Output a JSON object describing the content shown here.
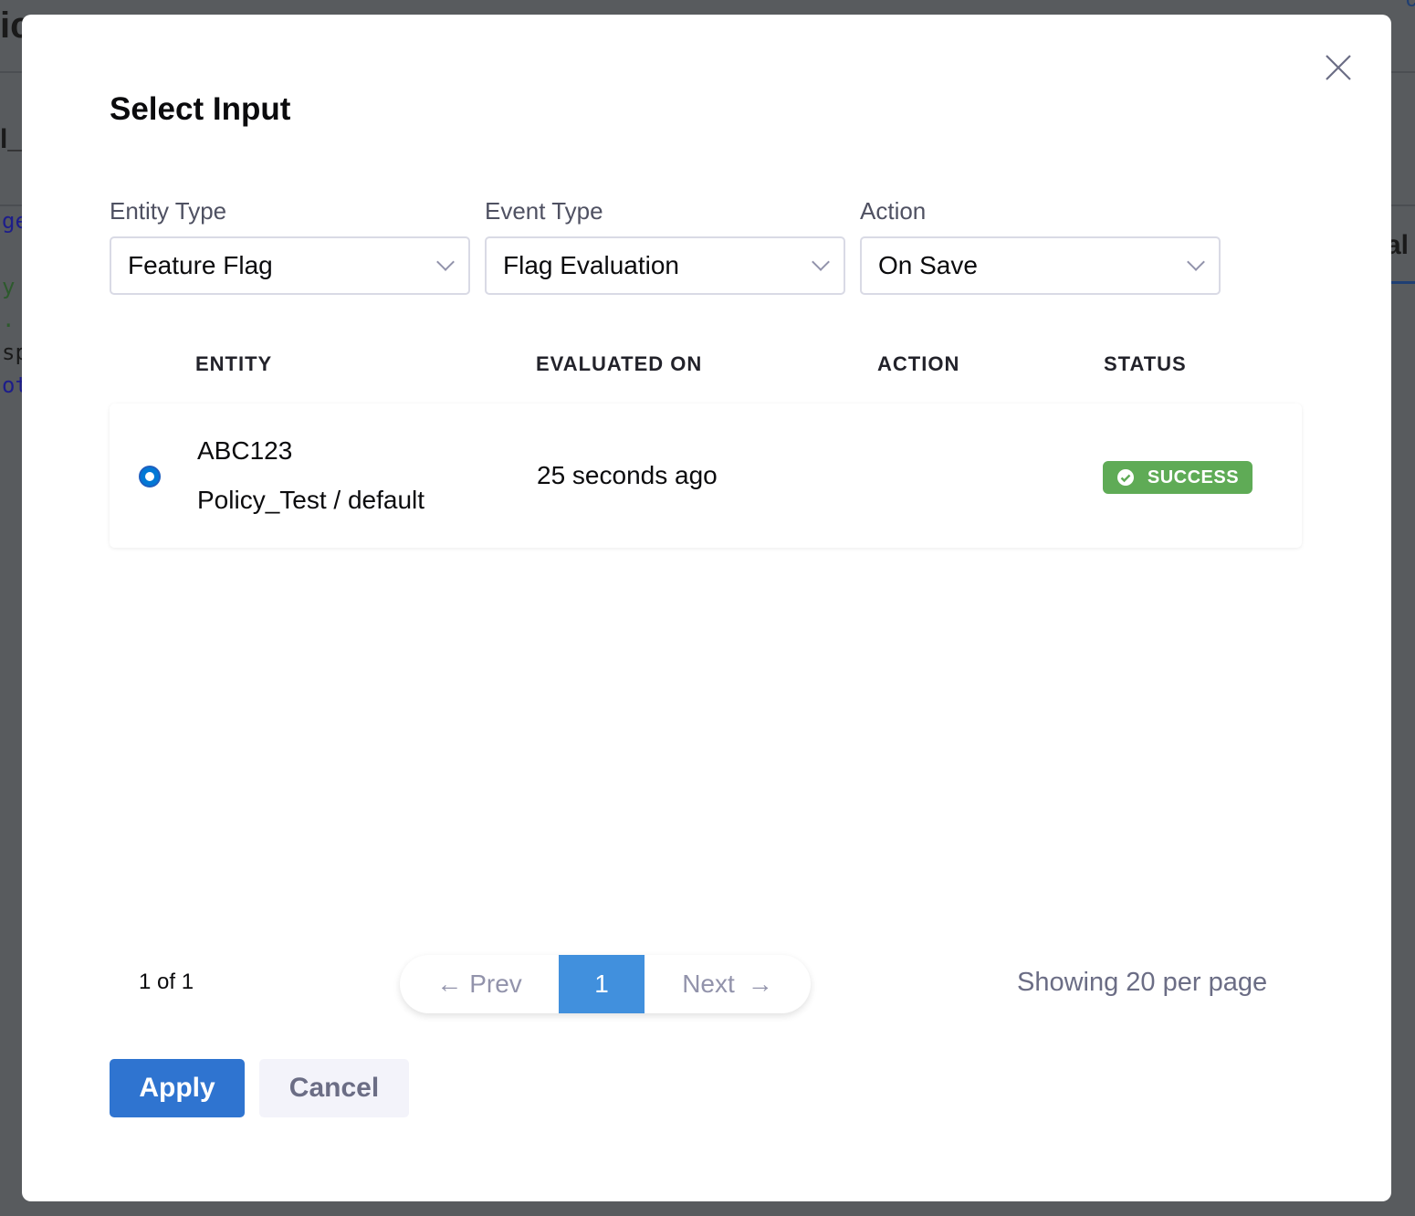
{
  "background": {
    "fragments": [
      "ic",
      "l_u",
      "ge",
      "y",
      ".",
      "sp",
      "ot",
      "al",
      "c"
    ]
  },
  "dialog": {
    "title": "Select Input",
    "close_icon": "close-icon",
    "filters": [
      {
        "label": "Entity Type",
        "value": "Feature Flag"
      },
      {
        "label": "Event Type",
        "value": "Flag Evaluation"
      },
      {
        "label": "Action",
        "value": "On Save"
      }
    ],
    "table": {
      "headers": [
        "ENTITY",
        "EVALUATED ON",
        "ACTION",
        "STATUS"
      ],
      "rows": [
        {
          "selected": true,
          "entity_name": "ABC123",
          "entity_path": "Policy_Test / default",
          "evaluated_on": "25 seconds ago",
          "action": "",
          "status": "SUCCESS",
          "status_color": "#5fab56"
        }
      ]
    },
    "pagination": {
      "info": "1 of 1",
      "prev": "Prev",
      "current": "1",
      "next": "Next",
      "per_page": "Showing 20 per page",
      "active_color": "#4190dd"
    },
    "buttons": {
      "apply": "Apply",
      "cancel": "Cancel"
    },
    "accent": "#2f74d0"
  }
}
